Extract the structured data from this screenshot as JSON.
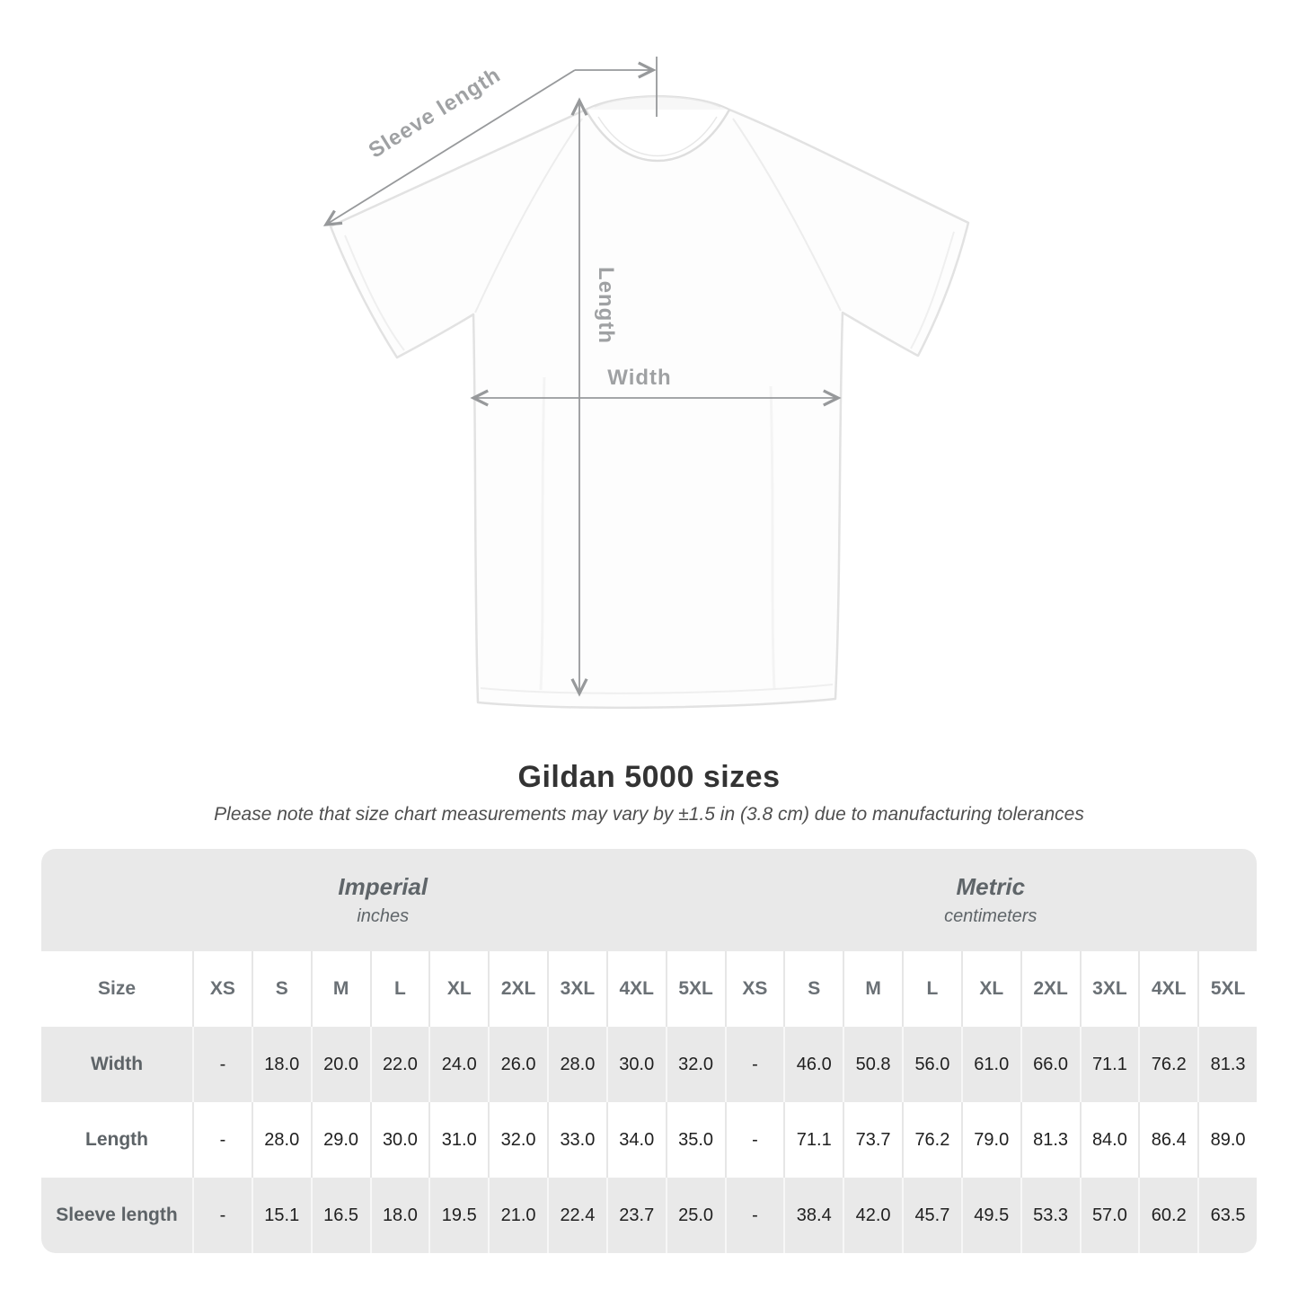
{
  "diagram": {
    "labels": {
      "sleeve_length": "Sleeve length",
      "length": "Length",
      "width": "Width"
    },
    "annotation_color": "#97999b"
  },
  "heading": {
    "title": "Gildan 5000 sizes",
    "note": "Please note that size chart measurements may vary by ±1.5 in (3.8 cm) due to manufacturing tolerances"
  },
  "size_table": {
    "corner_label": "Size",
    "unit_groups": [
      {
        "name": "Imperial",
        "unit": "inches"
      },
      {
        "name": "Metric",
        "unit": "centimeters"
      }
    ],
    "columns": [
      "XS",
      "S",
      "M",
      "L",
      "XL",
      "2XL",
      "3XL",
      "4XL",
      "5XL",
      "XS",
      "S",
      "M",
      "L",
      "XL",
      "2XL",
      "3XL",
      "4XL",
      "5XL"
    ],
    "rows": [
      {
        "label": "Width",
        "values": [
          "-",
          "18.0",
          "20.0",
          "22.0",
          "24.0",
          "26.0",
          "28.0",
          "30.0",
          "32.0",
          "-",
          "46.0",
          "50.8",
          "56.0",
          "61.0",
          "66.0",
          "71.1",
          "76.2",
          "81.3"
        ]
      },
      {
        "label": "Length",
        "values": [
          "-",
          "28.0",
          "29.0",
          "30.0",
          "31.0",
          "32.0",
          "33.0",
          "34.0",
          "35.0",
          "-",
          "71.1",
          "73.7",
          "76.2",
          "79.0",
          "81.3",
          "84.0",
          "86.4",
          "89.0"
        ]
      },
      {
        "label": "Sleeve length",
        "values": [
          "-",
          "15.1",
          "16.5",
          "18.0",
          "19.5",
          "21.0",
          "22.4",
          "23.7",
          "25.0",
          "-",
          "38.4",
          "42.0",
          "45.7",
          "49.5",
          "53.3",
          "57.0",
          "60.2",
          "63.5"
        ]
      }
    ]
  },
  "colors": {
    "table_band_bg": "#e9e9e9",
    "table_alt_row_bg": "#e9e9e9",
    "value_text": "#1f1f1f",
    "header_text": "#6a7075",
    "title_text": "#333333",
    "annotation": "#97999b"
  },
  "chart_data": {
    "type": "table",
    "title": "Gildan 5000 sizes",
    "note": "Please note that size chart measurements may vary by ±1.5 in (3.8 cm) due to manufacturing tolerances",
    "unit_groups": [
      "Imperial (inches)",
      "Metric (centimeters)"
    ],
    "columns": [
      "XS",
      "S",
      "M",
      "L",
      "XL",
      "2XL",
      "3XL",
      "4XL",
      "5XL",
      "XS",
      "S",
      "M",
      "L",
      "XL",
      "2XL",
      "3XL",
      "4XL",
      "5XL"
    ],
    "rows": [
      {
        "label": "Width",
        "values": [
          null,
          18.0,
          20.0,
          22.0,
          24.0,
          26.0,
          28.0,
          30.0,
          32.0,
          null,
          46.0,
          50.8,
          56.0,
          61.0,
          66.0,
          71.1,
          76.2,
          81.3
        ]
      },
      {
        "label": "Length",
        "values": [
          null,
          28.0,
          29.0,
          30.0,
          31.0,
          32.0,
          33.0,
          34.0,
          35.0,
          null,
          71.1,
          73.7,
          76.2,
          79.0,
          81.3,
          84.0,
          86.4,
          89.0
        ]
      },
      {
        "label": "Sleeve length",
        "values": [
          null,
          15.1,
          16.5,
          18.0,
          19.5,
          21.0,
          22.4,
          23.7,
          25.0,
          null,
          38.4,
          42.0,
          45.7,
          49.5,
          53.3,
          57.0,
          60.2,
          63.5
        ]
      }
    ]
  }
}
